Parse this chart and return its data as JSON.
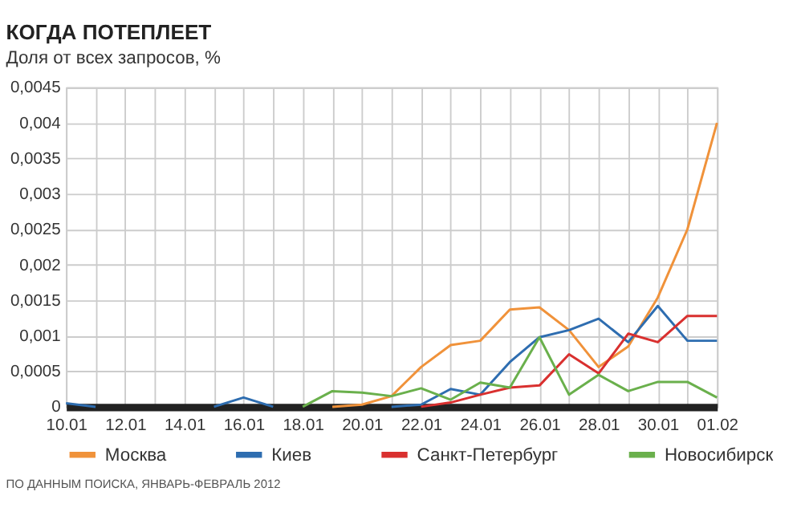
{
  "chart_data": {
    "type": "line",
    "title": "КОГДА ПОТЕПЛЕЕТ",
    "ylabel": "Доля от всех запросов, %",
    "categories": [
      "10.01",
      null,
      "12.01",
      null,
      "14.01",
      null,
      "16.01",
      null,
      "18.01",
      null,
      "20.01",
      null,
      "22.01",
      null,
      "24.01",
      null,
      "26.01",
      null,
      "28.01",
      null,
      "30.01",
      null,
      "01.02"
    ],
    "series": [
      {
        "name": "Москва",
        "color": "#f0923a",
        "values": [
          null,
          null,
          null,
          null,
          null,
          null,
          null,
          null,
          null,
          0,
          3e-05,
          0.00015,
          0.00056,
          0.00087,
          0.00093,
          0.00137,
          0.0014,
          0.00108,
          0.00056,
          0.00085,
          0.00154,
          0.0025,
          0.004
        ]
      },
      {
        "name": "Киев",
        "color": "#2e6db0",
        "values": [
          5e-05,
          0,
          null,
          null,
          null,
          0,
          0.00013,
          0,
          null,
          null,
          null,
          0,
          3e-05,
          0.00025,
          0.00017,
          0.00063,
          0.00098,
          0.00108,
          0.00124,
          0.00091,
          0.00142,
          0.00093,
          0.00093
        ]
      },
      {
        "name": "Санкт-Петербург",
        "color": "#d9302f",
        "values": [
          null,
          null,
          null,
          null,
          null,
          null,
          null,
          null,
          null,
          null,
          null,
          null,
          0,
          6e-05,
          0.00017,
          0.00027,
          0.0003,
          0.00074,
          0.00047,
          0.00103,
          0.00091,
          0.00128,
          0.00128
        ]
      },
      {
        "name": "Новосибирск",
        "color": "#6ab04c",
        "values": [
          null,
          null,
          null,
          null,
          null,
          null,
          null,
          null,
          0,
          0.00022,
          0.0002,
          0.00015,
          0.00026,
          0.0001,
          0.00034,
          0.00027,
          0.00098,
          0.00017,
          0.00045,
          0.00022,
          0.00035,
          0.00035,
          0.00013
        ]
      }
    ],
    "ylim": [
      0,
      0.0045
    ],
    "yticks": [
      0,
      {
        "value": 0.0005,
        "label": "0,0005"
      },
      {
        "value": 0.001,
        "label": "0,001"
      },
      {
        "value": 0.0015,
        "label": "0,0015"
      },
      {
        "value": 0.002,
        "label": "0,002"
      },
      {
        "value": 0.0025,
        "label": "0,0025"
      },
      {
        "value": 0.003,
        "label": "0,003"
      },
      {
        "value": 0.0035,
        "label": "0,0035"
      },
      {
        "value": 0.004,
        "label": "0,004"
      },
      {
        "value": 0.0045,
        "label": "0,0045"
      }
    ],
    "grid": true,
    "legend": "bottom",
    "marker": "none",
    "line_style": "solid",
    "annotations": [
      "ПО ДАННЫМ ПОИСКА, ЯНВАРЬ-ФЕВРАЛЬ 2012"
    ]
  }
}
